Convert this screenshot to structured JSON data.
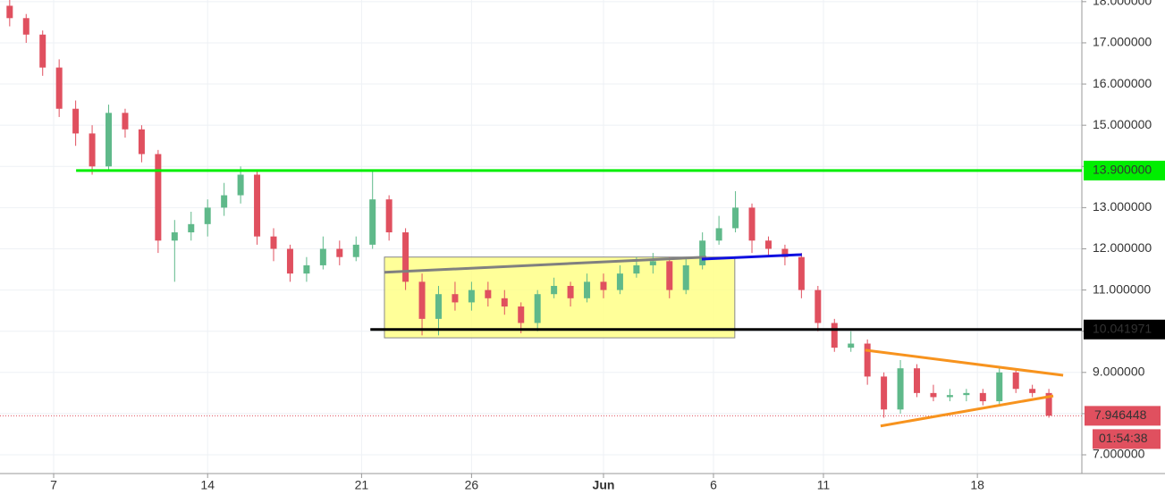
{
  "chart_data": {
    "type": "candlestick",
    "x": [
      5,
      5.75,
      6.5,
      7.25,
      8,
      8.75,
      9.5,
      10.25,
      11,
      11.75,
      12.5,
      13.25,
      14,
      14.75,
      15.5,
      16.25,
      17,
      17.75,
      18.5,
      19.25,
      20,
      20.75,
      21.5,
      22.25,
      23,
      23.75,
      24.5,
      25.25,
      26,
      26.75,
      27.5,
      28.25,
      29,
      29.75,
      30.5,
      31.25,
      32,
      32.75,
      33.5,
      34.25,
      35,
      35.75,
      36.5,
      37.25,
      38,
      38.75,
      39.5,
      40.25,
      41,
      41.75,
      42.5,
      43.25,
      44,
      44.75,
      45.5,
      46.25,
      47,
      47.75,
      48.5,
      49.25,
      50,
      50.75,
      51.5,
      52.25
    ],
    "open": [
      17.9,
      17.6,
      17.2,
      16.4,
      15.4,
      14.8,
      14.0,
      15.3,
      14.9,
      14.3,
      12.2,
      12.4,
      12.6,
      13.0,
      13.3,
      13.8,
      12.3,
      12.0,
      11.4,
      11.6,
      12.0,
      11.8,
      12.1,
      13.2,
      12.4,
      11.2,
      10.3,
      10.9,
      10.7,
      11.0,
      10.8,
      10.6,
      10.2,
      10.9,
      11.1,
      10.8,
      11.2,
      11.0,
      11.4,
      11.6,
      11.7,
      11.0,
      11.6,
      12.2,
      12.5,
      13.0,
      12.2,
      12.0,
      11.8,
      11.0,
      10.2,
      9.6,
      9.7,
      8.9,
      8.1,
      9.1,
      8.5,
      8.4,
      8.45,
      8.5,
      8.3,
      9.0,
      8.6,
      8.5
    ],
    "high": [
      18.1,
      17.7,
      17.3,
      16.6,
      15.6,
      15.0,
      15.5,
      15.4,
      15.0,
      14.4,
      12.7,
      12.9,
      13.2,
      13.6,
      14.0,
      13.9,
      12.5,
      12.1,
      11.8,
      12.3,
      12.2,
      12.3,
      13.9,
      13.3,
      12.5,
      11.4,
      11.1,
      11.2,
      11.2,
      11.2,
      11.0,
      10.7,
      11.0,
      11.3,
      11.2,
      11.4,
      11.4,
      11.6,
      11.8,
      11.9,
      11.8,
      11.8,
      12.4,
      12.8,
      13.4,
      13.1,
      12.3,
      12.1,
      11.9,
      11.1,
      10.3,
      10.0,
      9.8,
      9.0,
      9.3,
      9.2,
      8.7,
      8.6,
      8.6,
      8.6,
      9.1,
      9.1,
      8.7,
      8.6
    ],
    "low": [
      17.4,
      17.0,
      16.2,
      15.2,
      14.5,
      13.8,
      13.9,
      14.7,
      14.1,
      11.9,
      11.2,
      12.2,
      12.3,
      12.8,
      13.1,
      12.1,
      11.7,
      11.2,
      11.2,
      11.5,
      11.6,
      11.7,
      12.0,
      12.2,
      11.0,
      9.9,
      9.9,
      10.5,
      10.5,
      10.6,
      10.4,
      9.95,
      10.0,
      10.8,
      10.6,
      10.7,
      10.8,
      10.9,
      11.3,
      11.4,
      10.8,
      10.9,
      11.5,
      12.1,
      12.4,
      11.9,
      11.8,
      11.6,
      10.8,
      10.0,
      9.5,
      9.5,
      8.7,
      7.9,
      8.0,
      8.4,
      8.3,
      8.3,
      8.3,
      8.2,
      8.2,
      8.5,
      8.4,
      7.9
    ],
    "close": [
      17.6,
      17.2,
      16.4,
      15.4,
      14.8,
      14.0,
      15.3,
      14.9,
      14.3,
      12.2,
      12.4,
      12.6,
      13.0,
      13.3,
      13.8,
      12.3,
      12.0,
      11.4,
      11.6,
      12.0,
      11.8,
      12.1,
      13.2,
      12.4,
      11.2,
      10.3,
      10.9,
      10.7,
      11.0,
      10.8,
      10.6,
      10.2,
      10.9,
      11.1,
      10.8,
      11.2,
      11.0,
      11.4,
      11.6,
      11.7,
      11.0,
      11.6,
      12.2,
      12.5,
      13.0,
      12.2,
      12.0,
      11.8,
      11.0,
      10.2,
      9.6,
      9.7,
      8.9,
      8.1,
      9.1,
      8.5,
      8.4,
      8.45,
      8.5,
      8.3,
      9.0,
      8.6,
      8.5,
      7.95
    ],
    "up_color": "#5fb98a",
    "down_color": "#e0505f",
    "xlim": [
      4.56,
      53.75
    ],
    "xticks": [
      7,
      14,
      21,
      26,
      {
        "value": 32,
        "label": "Jun"
      },
      {
        "value": 37,
        "label": "6"
      },
      {
        "value": 42,
        "label": "11"
      },
      {
        "value": 49,
        "label": "18"
      }
    ],
    "ylim": [
      6.545,
      18.04
    ],
    "yticks": [
      {
        "value": 7,
        "label": "7.000000"
      },
      {
        "value": 8,
        "label": "8.000000"
      },
      {
        "value": 9,
        "label": "9.000000"
      },
      {
        "value": 10,
        "label": "10.000000"
      },
      {
        "value": 11,
        "label": "11.000000"
      },
      {
        "value": 12,
        "label": "12.000000"
      },
      {
        "value": 13,
        "label": "13.000000"
      },
      {
        "value": 14,
        "label": "14.000000"
      },
      {
        "value": 15,
        "label": "15.000000"
      },
      {
        "value": 16,
        "label": "16.000000"
      },
      {
        "value": 17,
        "label": "17.000000"
      },
      {
        "value": 18,
        "label": "18.000000"
      }
    ],
    "grid": true,
    "levels": [
      {
        "value": 13.9,
        "label": "13.900000",
        "color": "#00ee00",
        "start": 8.02
      },
      {
        "value": 10.041971,
        "label": "10.041971",
        "color": "#000000",
        "start": 21.4
      }
    ],
    "last_price": {
      "value": 7.946448,
      "label": "7.946448",
      "color": "#e0505f"
    },
    "countdown": "01:54:38",
    "box": {
      "x": [
        22.04,
        37.97
      ],
      "y": [
        9.84,
        11.8
      ],
      "color": "#ffff80"
    },
    "trendlines": [
      {
        "x": [
          22.04,
          36.67
        ],
        "y": [
          11.43,
          11.8
        ],
        "color": "#808080"
      },
      {
        "x": [
          36.47,
          41.02
        ],
        "y": [
          11.75,
          11.86
        ],
        "color": "#1010e0"
      },
      {
        "x": [
          43.9,
          52.9
        ],
        "y": [
          9.54,
          8.93
        ],
        "color": "#f7931e"
      },
      {
        "x": [
          44.6,
          52.45
        ],
        "y": [
          7.7,
          8.43
        ],
        "color": "#f7931e"
      }
    ]
  }
}
